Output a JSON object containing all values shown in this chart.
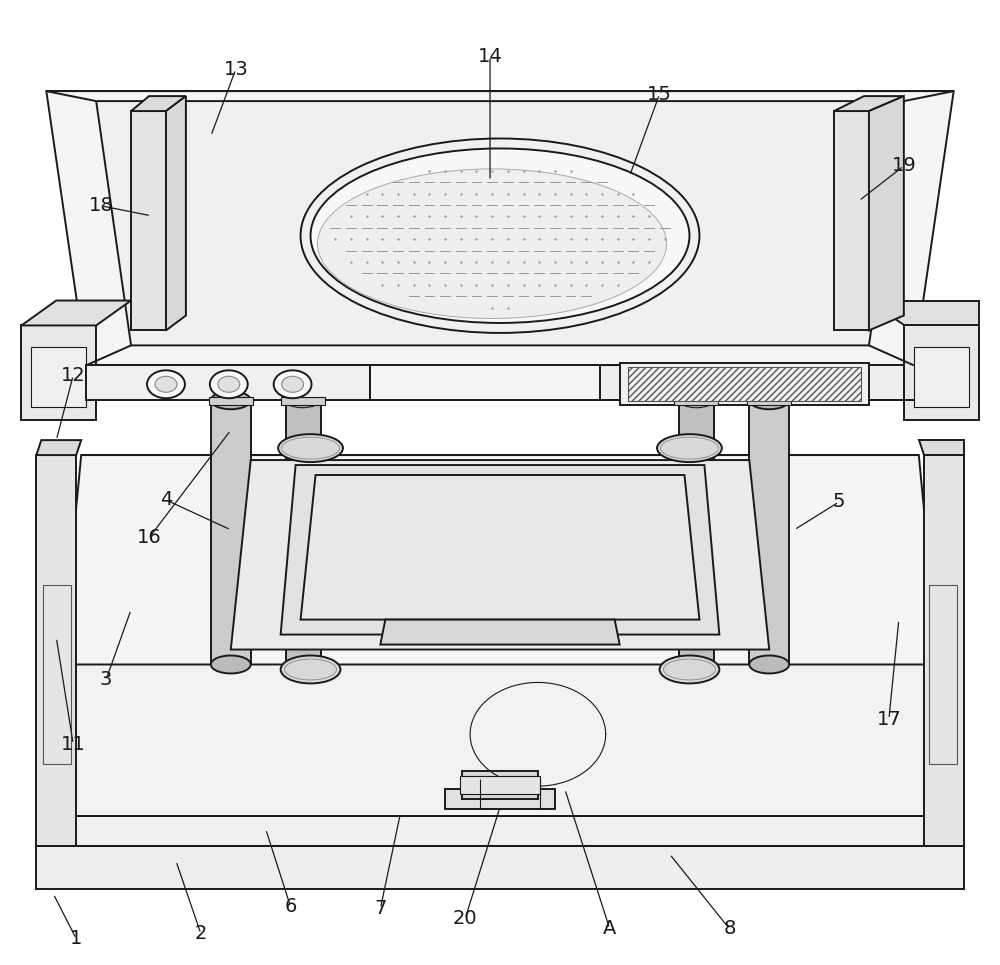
{
  "bg_color": "#ffffff",
  "line_color": "#1a1a1a",
  "label_color": "#1a1a1a",
  "figsize": [
    10.0,
    9.65
  ],
  "dpi": 100
}
